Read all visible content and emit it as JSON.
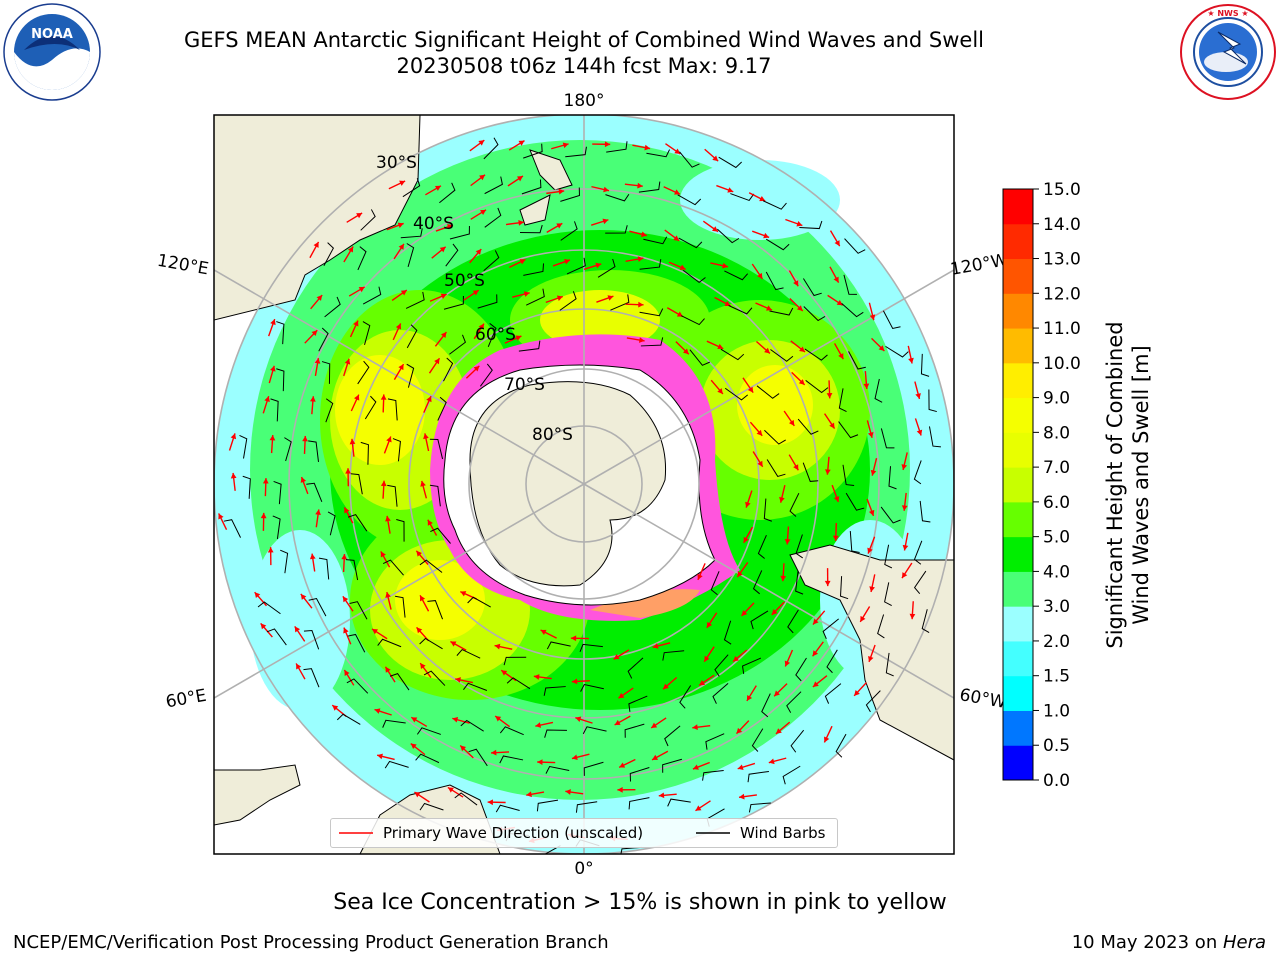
{
  "header": {
    "title_line1": "GEFS MEAN Antarctic Significant Height of Combined Wind Waves and Swell",
    "title_line2": "20230508 t06z 144h fcst   Max: 9.17"
  },
  "logos": {
    "noaa_text": "NOAA",
    "noaa_ring_text": "NATIONAL OCEANIC AND ATMOSPHERIC ADMINISTRATION · U.S. DEPARTMENT OF COMMERCE",
    "nws_ring_text": "NATIONAL WEATHER SERVICE"
  },
  "map": {
    "meridian_labels": [
      "180°",
      "120°E",
      "120°W",
      "60°E",
      "60°W",
      "0°"
    ],
    "parallel_labels": [
      "30°S",
      "40°S",
      "50°S",
      "60°S",
      "70°S",
      "80°S"
    ],
    "legend": {
      "wave_direction": "Primary Wave Direction (unscaled)",
      "wind_barbs": "Wind Barbs"
    },
    "colors": {
      "ocean_base": "#9bffff",
      "land": "#efedd9",
      "ice_pink": "#ff55dd",
      "arrow": "#ff0000",
      "barb": "#000000"
    }
  },
  "colorbar": {
    "label_line1": "Significant Height of Combined",
    "label_line2": "Wind Waves and Swell [m]",
    "ticks": [
      "0.0",
      "0.5",
      "1.0",
      "1.5",
      "2.0",
      "3.0",
      "4.0",
      "5.0",
      "6.0",
      "7.0",
      "8.0",
      "9.0",
      "10.0",
      "11.0",
      "12.0",
      "13.0",
      "14.0",
      "15.0"
    ],
    "colors": [
      "#0000ff",
      "#0077ff",
      "#00ffff",
      "#44ffff",
      "#9bffff",
      "#49ff77",
      "#00ee00",
      "#66ff00",
      "#c8ff00",
      "#e8ff00",
      "#f5ff00",
      "#ffee00",
      "#ffbb00",
      "#ff8800",
      "#ff5500",
      "#ff2a00",
      "#ff0000"
    ]
  },
  "footer": {
    "note": "Sea Ice Concentration > 15% is shown in pink to yellow",
    "left": "NCEP/EMC/Verification Post Processing Product Generation Branch",
    "date": "10 May 2023 on ",
    "host": "Hera"
  }
}
